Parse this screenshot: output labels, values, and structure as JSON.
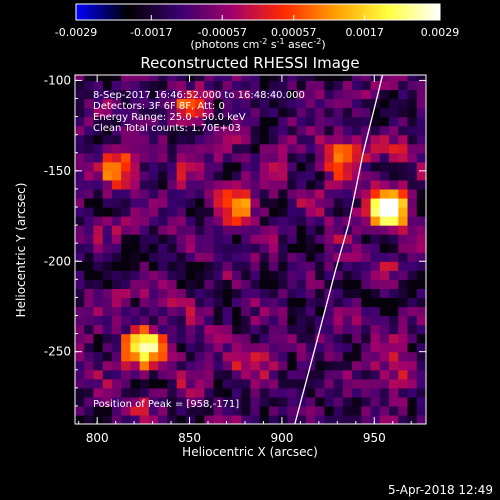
{
  "colorbar": {
    "ticks": [
      {
        "value": -0.0029,
        "label": "-0.0029"
      },
      {
        "value": -0.0017,
        "label": "-0.0017"
      },
      {
        "value": -0.00057,
        "label": "-0.00057"
      },
      {
        "value": 0.00057,
        "label": "0.00057"
      },
      {
        "value": 0.0017,
        "label": "0.0017"
      },
      {
        "value": 0.0029,
        "label": "0.0029"
      }
    ],
    "range": [
      -0.0029,
      0.0029
    ],
    "colormap": [
      "#0000ff",
      "#000000",
      "#3a0070",
      "#a0006a",
      "#ff2a00",
      "#ffa000",
      "#ffff40",
      "#ffffff"
    ]
  },
  "units_prefix": "(photons cm",
  "units_exp1": "-2",
  "units_mid": " s",
  "units_exp2": "-1",
  "units_mid2": " asec",
  "units_exp3": "-2",
  "units_suffix": ")",
  "footer_date": "5-Apr-2018 12:49",
  "chart_data": {
    "type": "heatmap",
    "title": "Reconstructed RHESSI Image",
    "xlabel": "Heliocentric X (arcsec)",
    "ylabel": "Heliocentric Y (arcsec)",
    "xlim": [
      788,
      978
    ],
    "ylim": [
      -290,
      -97
    ],
    "xticks": [
      800,
      850,
      900,
      950
    ],
    "yticks": [
      -250,
      -200,
      -150,
      -100
    ],
    "annotations": [
      "8-Sep-2017 16:46:52.000 to 16:48:40.000",
      "Detectors: 3F 6F 8F, Att: 0",
      "Energy Range: 25.0 - 50.0 keV",
      "Clean    Total counts: 1.70E+03"
    ],
    "peak_label": "Position of Peak = [958,-171]",
    "peak": {
      "x": 958,
      "y": -171,
      "amp": 1.0
    },
    "sources": [
      {
        "x": 958,
        "y": -171,
        "amp": 1.0
      },
      {
        "x": 826,
        "y": -248,
        "amp": 0.85
      },
      {
        "x": 876,
        "y": -168,
        "amp": 0.55
      },
      {
        "x": 812,
        "y": -150,
        "amp": 0.45
      },
      {
        "x": 930,
        "y": -140,
        "amp": 0.45
      },
      {
        "x": 880,
        "y": -255,
        "amp": 0.35
      },
      {
        "x": 960,
        "y": -260,
        "amp": 0.35
      },
      {
        "x": 850,
        "y": -115,
        "amp": 0.35
      }
    ],
    "limb": [
      {
        "x": 954.5,
        "y": -97
      },
      {
        "x": 944,
        "y": -140
      },
      {
        "x": 936,
        "y": -180
      },
      {
        "x": 929,
        "y": -205
      },
      {
        "x": 920,
        "y": -240
      },
      {
        "x": 907,
        "y": -290
      }
    ]
  }
}
